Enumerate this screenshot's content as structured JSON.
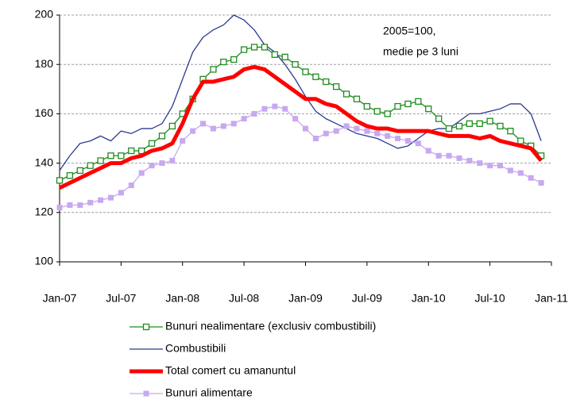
{
  "chart_data": {
    "type": "line",
    "annotations": [
      "2005=100,",
      "medie pe 3 luni"
    ],
    "x": [
      0,
      1,
      2,
      3,
      4,
      5,
      6,
      7,
      8,
      9,
      10,
      11,
      12,
      13,
      14,
      15,
      16,
      17,
      18,
      19,
      20,
      21,
      22,
      23,
      24,
      25,
      26,
      27,
      28,
      29,
      30,
      31,
      32,
      33,
      34,
      35,
      36,
      37,
      38,
      39,
      40,
      41,
      42,
      43,
      44,
      45,
      46,
      47
    ],
    "xlim": [
      0,
      48
    ],
    "xticks": [
      {
        "value": 0,
        "label": "Jan-07"
      },
      {
        "value": 6,
        "label": "Jul-07"
      },
      {
        "value": 12,
        "label": "Jan-08"
      },
      {
        "value": 18,
        "label": "Jul-08"
      },
      {
        "value": 24,
        "label": "Jan-09"
      },
      {
        "value": 30,
        "label": "Jul-09"
      },
      {
        "value": 36,
        "label": "Jan-10"
      },
      {
        "value": 42,
        "label": "Jul-10"
      },
      {
        "value": 48,
        "label": "Jan-11"
      }
    ],
    "ylim": [
      100,
      200
    ],
    "yticks": [
      100,
      120,
      140,
      160,
      180,
      200
    ],
    "grid": true,
    "series": [
      {
        "name": "Bunuri nealimentare (exclusiv combustibili)",
        "color": "#1e8c1e",
        "marker": "hollow-square",
        "values": [
          133,
          135,
          137,
          139,
          141,
          143,
          143,
          145,
          145,
          148,
          151,
          155,
          160,
          166,
          174,
          178,
          181,
          182,
          186,
          187,
          187,
          184,
          183,
          180,
          177,
          175,
          173,
          171,
          168,
          166,
          163,
          161,
          160,
          163,
          164,
          165,
          162,
          158,
          154,
          155,
          156,
          156,
          157,
          155,
          153,
          149,
          147,
          143
        ]
      },
      {
        "name": "Combustibili",
        "color": "#2b3a8f",
        "marker": "none",
        "values": [
          137,
          143,
          148,
          149,
          151,
          149,
          153,
          152,
          154,
          154,
          156,
          163,
          174,
          185,
          191,
          194,
          196,
          200,
          198,
          194,
          188,
          185,
          180,
          174,
          167,
          161,
          158,
          156,
          154,
          152,
          151,
          150,
          148,
          146,
          147,
          150,
          153,
          154,
          154,
          157,
          160,
          160,
          161,
          162,
          164,
          164,
          160,
          149
        ]
      },
      {
        "name": "Total comert cu amanuntul",
        "color": "#ff0000",
        "marker": "none",
        "values": [
          130,
          132,
          134,
          136,
          138,
          140,
          140,
          142,
          143,
          145,
          146,
          148,
          156,
          166,
          173,
          173,
          174,
          175,
          178,
          179,
          178,
          175,
          172,
          169,
          166,
          166,
          164,
          163,
          160,
          157,
          155,
          154,
          154,
          153,
          153,
          153,
          153,
          152,
          151,
          151,
          151,
          150,
          151,
          149,
          148,
          147,
          146,
          141
        ]
      },
      {
        "name": "Bunuri alimentare",
        "color": "#c8a8f0",
        "marker": "filled-square",
        "values": [
          122,
          123,
          123,
          124,
          125,
          126,
          128,
          131,
          136,
          139,
          140,
          141,
          149,
          153,
          156,
          154,
          155,
          156,
          158,
          160,
          162,
          163,
          162,
          158,
          154,
          150,
          152,
          153,
          155,
          154,
          153,
          152,
          151,
          150,
          149,
          148,
          145,
          143,
          143,
          142,
          141,
          140,
          139,
          139,
          137,
          136,
          134,
          132
        ]
      }
    ]
  }
}
